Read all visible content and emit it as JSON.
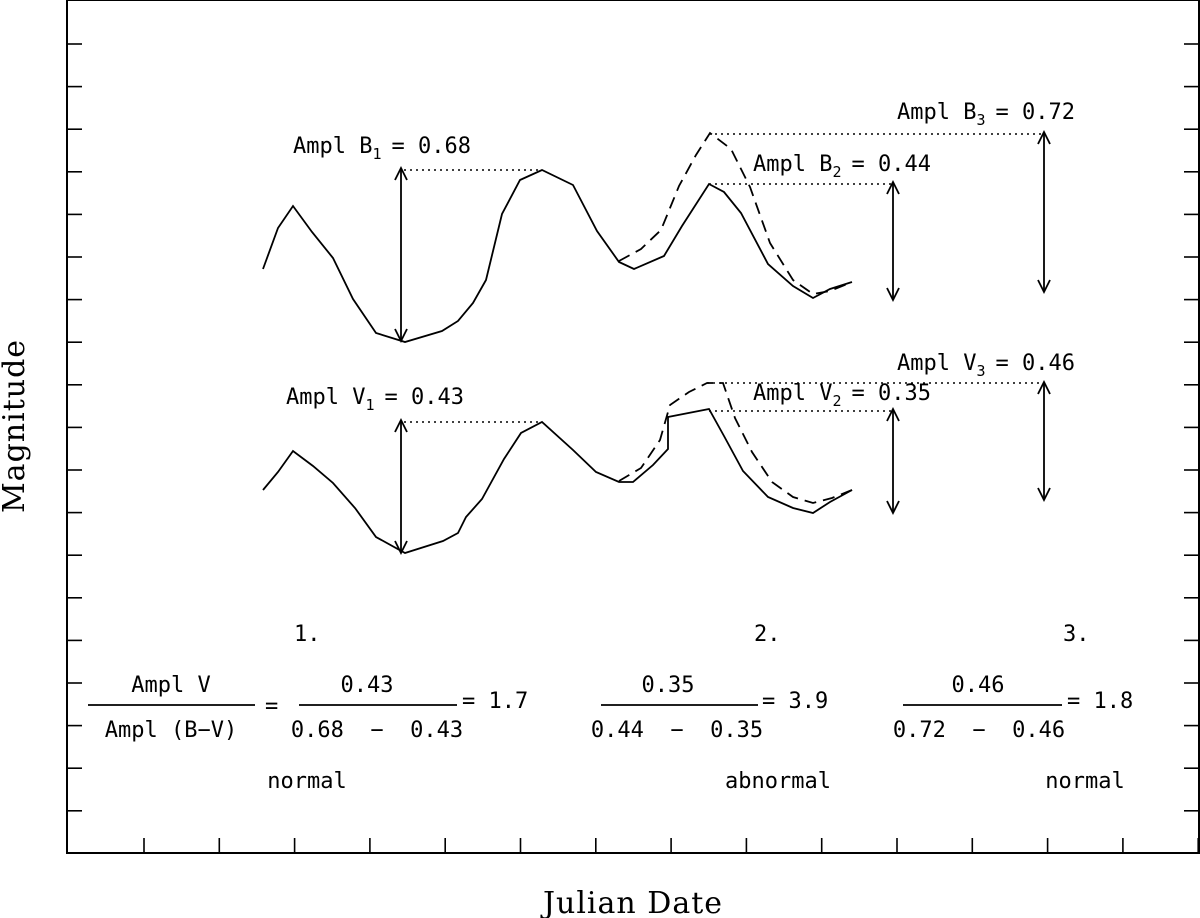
{
  "axes": {
    "xlabel": "Julian Date",
    "ylabel": "Magnitude"
  },
  "annotations": {
    "b1": {
      "prefix": "Ampl B",
      "sub": "1",
      "value": "= 0.68"
    },
    "b2": {
      "prefix": "Ampl B",
      "sub": "2",
      "value": "= 0.44"
    },
    "b3": {
      "prefix": "Ampl B",
      "sub": "3",
      "value": "= 0.72"
    },
    "v1": {
      "prefix": "Ampl V",
      "sub": "1",
      "value": "= 0.43"
    },
    "v2": {
      "prefix": "Ampl V",
      "sub": "2",
      "value": "= 0.35"
    },
    "v3": {
      "prefix": "Ampl V",
      "sub": "3",
      "value": "= 0.46"
    }
  },
  "cases": [
    {
      "number": "1.",
      "ratio_num": "Ampl V",
      "ratio_den": "Ampl (B−V)",
      "eq1": "=",
      "num": "0.43",
      "den": "0.68  −  0.43",
      "result": "= 1.7",
      "status": "normal"
    },
    {
      "number": "2.",
      "num": "0.35",
      "den": "0.44  −  0.35",
      "result": "= 3.9",
      "status": "abnormal"
    },
    {
      "number": "3.",
      "num": "0.46",
      "den": "0.72  −  0.46",
      "result": "= 1.8",
      "status": "normal"
    }
  ]
}
